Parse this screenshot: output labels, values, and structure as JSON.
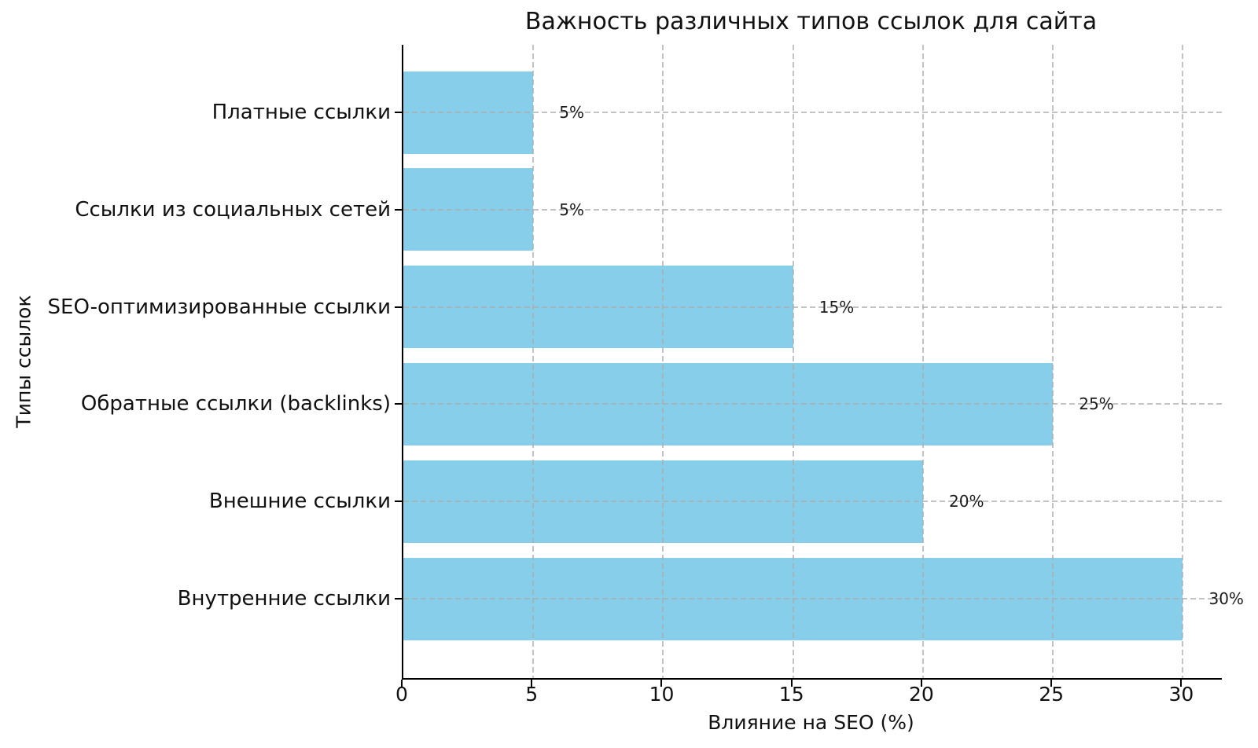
{
  "chart_data": {
    "type": "bar",
    "orientation": "horizontal",
    "title": "Важность различных типов ссылок для сайта",
    "xlabel": "Влияние на SEO (%)",
    "ylabel": "Типы ссылок",
    "categories_order": "top-to-bottom",
    "categories": [
      "Платные ссылки",
      "Ссылки из социальных сетей",
      "SEO-оптимизированные ссылки",
      "Обратные ссылки (backlinks)",
      "Внешние ссылки",
      "Внутренние ссылки"
    ],
    "values": [
      5,
      5,
      15,
      25,
      20,
      30
    ],
    "value_labels": [
      "5%",
      "5%",
      "15%",
      "25%",
      "20%",
      "30%"
    ],
    "x_ticks": [
      0,
      5,
      10,
      15,
      20,
      25,
      30
    ],
    "xlim": [
      0,
      31.5
    ],
    "bar_color": "#87CEEB",
    "grid": {
      "style": "dashed",
      "color": "#b0b0b0",
      "shown": "both-axes, drawn above bars"
    },
    "legend": "none",
    "background_color": "#ffffff",
    "text_color": "#111111"
  }
}
